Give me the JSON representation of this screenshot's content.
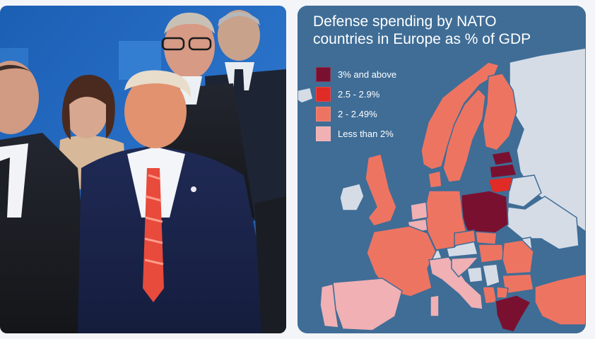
{
  "map": {
    "title_line1": "Defense spending by NATO",
    "title_line2": "countries in Europe as % of GDP",
    "legend": [
      {
        "label": "3% and above",
        "color": "#7a1030"
      },
      {
        "label": "2.5 - 2.9%",
        "color": "#e02b26"
      },
      {
        "label": "2 - 2.49%",
        "color": "#ee7462"
      },
      {
        "label": "Less than 2%",
        "color": "#f0b0b4"
      }
    ],
    "colors": {
      "sea": "#3f6d96",
      "non_member": "#d5dce6",
      "border": "#3f6d96"
    }
  },
  "photo": {
    "description_icon": "group-photo"
  }
}
